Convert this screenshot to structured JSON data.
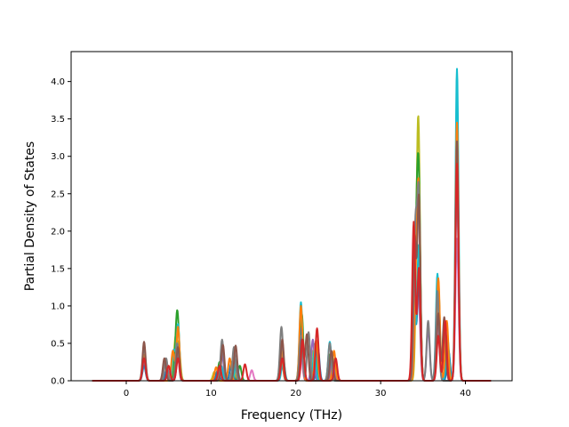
{
  "chart_data": {
    "type": "line",
    "title": "",
    "xlabel": "Frequency (THz)",
    "ylabel": "Partial Density of States",
    "xlim": [
      -6.5,
      45.5
    ],
    "ylim": [
      0,
      4.4
    ],
    "xticks": [
      0,
      10,
      20,
      30,
      40
    ],
    "xtick_labels": [
      "0",
      "10",
      "20",
      "30",
      "40"
    ],
    "yticks": [
      0,
      0.5,
      1.0,
      1.5,
      2.0,
      2.5,
      3.0,
      3.5,
      4.0
    ],
    "ytick_labels": [
      "0.0",
      "0.5",
      "1.0",
      "1.5",
      "2.0",
      "2.5",
      "3.0",
      "3.5",
      "4.0"
    ],
    "grid": false,
    "legend": "none",
    "x_range_of_data": [
      -4,
      43
    ],
    "series": [
      {
        "color": "#e377c2",
        "peaks": [
          [
            2.1,
            0.22
          ],
          [
            5.0,
            0.12
          ],
          [
            6.1,
            0.3
          ],
          [
            11.2,
            0.2
          ],
          [
            14.8,
            0.14
          ],
          [
            18.3,
            0.3
          ],
          [
            20.6,
            0.35
          ],
          [
            22.4,
            0.28
          ],
          [
            24.1,
            0.2
          ],
          [
            34.1,
            1.2
          ],
          [
            34.5,
            1.0
          ],
          [
            36.8,
            0.7
          ],
          [
            38.0,
            0.4
          ],
          [
            39.0,
            1.9
          ]
        ]
      },
      {
        "color": "#bcbd22",
        "peaks": [
          [
            2.1,
            0.25
          ],
          [
            5.8,
            0.55
          ],
          [
            6.2,
            0.45
          ],
          [
            10.4,
            0.12
          ],
          [
            12.6,
            0.18
          ],
          [
            18.3,
            0.35
          ],
          [
            20.7,
            0.8
          ],
          [
            22.0,
            0.4
          ],
          [
            24.4,
            0.3
          ],
          [
            34.3,
            1.6
          ],
          [
            34.5,
            2.5
          ],
          [
            36.8,
            1.2
          ],
          [
            37.8,
            0.6
          ],
          [
            39.0,
            3.3
          ]
        ]
      },
      {
        "color": "#2ca02c",
        "peaks": [
          [
            2.1,
            0.3
          ],
          [
            5.9,
            0.5
          ],
          [
            6.1,
            0.6
          ],
          [
            11.0,
            0.25
          ],
          [
            13.4,
            0.2
          ],
          [
            18.4,
            0.4
          ],
          [
            20.7,
            0.9
          ],
          [
            22.3,
            0.5
          ],
          [
            24.0,
            0.35
          ],
          [
            34.2,
            1.7
          ],
          [
            34.5,
            2.48
          ],
          [
            36.8,
            1.3
          ],
          [
            37.9,
            0.5
          ],
          [
            39.0,
            3.4
          ]
        ]
      },
      {
        "color": "#1f77b4",
        "peaks": [
          [
            2.1,
            0.2
          ],
          [
            4.8,
            0.15
          ],
          [
            6.1,
            0.4
          ],
          [
            10.8,
            0.15
          ],
          [
            12.4,
            0.25
          ],
          [
            18.3,
            0.35
          ],
          [
            20.6,
            0.7
          ],
          [
            22.6,
            0.45
          ],
          [
            24.1,
            0.3
          ],
          [
            34.0,
            0.8
          ],
          [
            34.5,
            1.3
          ],
          [
            36.8,
            1.0
          ],
          [
            38.0,
            0.4
          ],
          [
            39.0,
            3.0
          ]
        ]
      },
      {
        "color": "#9467bd",
        "peaks": [
          [
            2.1,
            0.28
          ],
          [
            4.6,
            0.25
          ],
          [
            6.1,
            0.35
          ],
          [
            11.3,
            0.35
          ],
          [
            12.8,
            0.3
          ],
          [
            18.4,
            0.45
          ],
          [
            20.8,
            0.5
          ],
          [
            22.0,
            0.55
          ],
          [
            24.3,
            0.3
          ],
          [
            34.2,
            1.5
          ],
          [
            34.5,
            2.0
          ],
          [
            35.6,
            0.7
          ],
          [
            36.8,
            1.1
          ],
          [
            39.0,
            2.6
          ]
        ]
      },
      {
        "color": "#17becf",
        "peaks": [
          [
            2.1,
            0.3
          ],
          [
            5.6,
            0.4
          ],
          [
            6.1,
            0.75
          ],
          [
            11.2,
            0.2
          ],
          [
            13.0,
            0.28
          ],
          [
            18.5,
            0.3
          ],
          [
            20.6,
            1.05
          ],
          [
            22.2,
            0.4
          ],
          [
            24.0,
            0.52
          ],
          [
            34.0,
            0.7
          ],
          [
            34.5,
            1.8
          ],
          [
            36.7,
            1.43
          ],
          [
            37.9,
            0.55
          ],
          [
            39.0,
            4.17
          ]
        ]
      },
      {
        "color": "#ff7f0e",
        "peaks": [
          [
            2.1,
            0.35
          ],
          [
            5.5,
            0.4
          ],
          [
            6.1,
            0.72
          ],
          [
            10.6,
            0.18
          ],
          [
            12.2,
            0.3
          ],
          [
            18.3,
            0.4
          ],
          [
            20.6,
            1.0
          ],
          [
            22.4,
            0.55
          ],
          [
            24.5,
            0.4
          ],
          [
            34.2,
            1.3
          ],
          [
            34.5,
            2.3
          ],
          [
            36.8,
            1.37
          ],
          [
            37.8,
            0.8
          ],
          [
            39.0,
            3.45
          ]
        ]
      },
      {
        "color": "#7f7f7f",
        "peaks": [
          [
            2.1,
            0.45
          ],
          [
            4.7,
            0.3
          ],
          [
            6.0,
            0.5
          ],
          [
            11.3,
            0.55
          ],
          [
            12.7,
            0.45
          ],
          [
            18.3,
            0.72
          ],
          [
            20.6,
            0.6
          ],
          [
            21.5,
            0.65
          ],
          [
            24.0,
            0.5
          ],
          [
            34.1,
            2.0
          ],
          [
            34.5,
            2.45
          ],
          [
            35.6,
            0.8
          ],
          [
            36.7,
            1.2
          ],
          [
            39.0,
            2.8
          ]
        ]
      },
      {
        "color": "#8c564b",
        "peaks": [
          [
            2.1,
            0.52
          ],
          [
            4.5,
            0.3
          ],
          [
            6.1,
            0.45
          ],
          [
            11.4,
            0.48
          ],
          [
            12.9,
            0.47
          ],
          [
            18.4,
            0.55
          ],
          [
            20.7,
            0.55
          ],
          [
            21.3,
            0.62
          ],
          [
            24.2,
            0.4
          ],
          [
            34.0,
            1.9
          ],
          [
            34.5,
            2.45
          ],
          [
            36.8,
            0.9
          ],
          [
            37.5,
            0.85
          ],
          [
            39.0,
            3.2
          ]
        ]
      },
      {
        "color": "#d62728",
        "peaks": [
          [
            2.1,
            0.3
          ],
          [
            5.0,
            0.2
          ],
          [
            6.1,
            0.3
          ],
          [
            11.0,
            0.2
          ],
          [
            14.0,
            0.22
          ],
          [
            18.4,
            0.3
          ],
          [
            20.8,
            0.55
          ],
          [
            22.5,
            0.7
          ],
          [
            24.7,
            0.3
          ],
          [
            33.9,
            2.12
          ],
          [
            34.5,
            1.5
          ],
          [
            36.8,
            0.6
          ],
          [
            37.6,
            0.8
          ],
          [
            39.0,
            2.9
          ]
        ]
      }
    ]
  }
}
